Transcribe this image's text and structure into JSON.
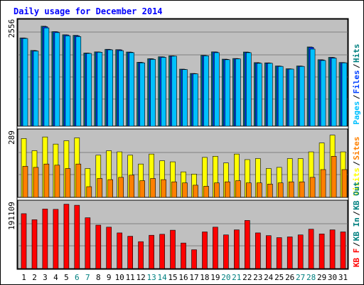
{
  "title": "Daily usage for December 2014",
  "chart_data": [
    {
      "type": "bar",
      "panel": "top",
      "max_label": "2556",
      "ylim": [
        0,
        2720
      ],
      "legend": [
        {
          "label": "Pages",
          "color": "#00c0ff"
        },
        {
          "label": "Files",
          "color": "#0040ff"
        },
        {
          "label": "Hits",
          "color": "#008080"
        }
      ],
      "categories": [
        "1",
        "2",
        "3",
        "4",
        "5",
        "6",
        "7",
        "8",
        "9",
        "10",
        "11",
        "12",
        "13",
        "14",
        "15",
        "16",
        "17",
        "18",
        "19",
        "20",
        "21",
        "22",
        "23",
        "24",
        "25",
        "26",
        "27",
        "28",
        "29",
        "30",
        "31"
      ],
      "series": [
        {
          "name": "Hits",
          "color": "#008080",
          "values": [
            2245,
            1925,
            2542,
            2405,
            2325,
            2310,
            1860,
            1890,
            1955,
            1945,
            1885,
            1625,
            1715,
            1765,
            1790,
            1450,
            1340,
            1800,
            1890,
            1705,
            1720,
            1885,
            1615,
            1610,
            1530,
            1460,
            1530,
            2015,
            1690,
            1750,
            1620
          ]
        },
        {
          "name": "Files",
          "color": "#0040ff",
          "values": [
            2240,
            1920,
            2530,
            2400,
            2320,
            2300,
            1855,
            1885,
            1950,
            1940,
            1880,
            1620,
            1710,
            1760,
            1785,
            1445,
            1335,
            1795,
            1885,
            1700,
            1715,
            1880,
            1610,
            1605,
            1525,
            1455,
            1525,
            2005,
            1685,
            1745,
            1615
          ]
        },
        {
          "name": "Pages",
          "color": "#00c0ff",
          "values": [
            2230,
            1910,
            2500,
            2380,
            2300,
            2280,
            1850,
            1880,
            1940,
            1920,
            1870,
            1610,
            1700,
            1750,
            1780,
            1440,
            1330,
            1790,
            1870,
            1690,
            1710,
            1870,
            1600,
            1600,
            1520,
            1450,
            1520,
            1960,
            1670,
            1730,
            1610
          ]
        }
      ]
    },
    {
      "type": "bar",
      "panel": "middle",
      "max_label": "289",
      "ylim": [
        0,
        308
      ],
      "legend": [
        {
          "label": "Visits",
          "color": "#ffff00"
        },
        {
          "label": "Sites",
          "color": "#ff8000"
        }
      ],
      "categories": [
        "1",
        "2",
        "3",
        "4",
        "5",
        "6",
        "7",
        "8",
        "9",
        "10",
        "11",
        "12",
        "13",
        "14",
        "15",
        "16",
        "17",
        "18",
        "19",
        "20",
        "21",
        "22",
        "23",
        "24",
        "25",
        "26",
        "27",
        "28",
        "29",
        "30",
        "31"
      ],
      "series": [
        {
          "name": "Visits",
          "color": "#ffff00",
          "values": [
            265,
            210,
            272,
            240,
            255,
            268,
            130,
            190,
            210,
            205,
            190,
            150,
            195,
            165,
            160,
            115,
            105,
            180,
            185,
            155,
            195,
            170,
            175,
            130,
            135,
            175,
            175,
            205,
            245,
            280,
            205
          ]
        },
        {
          "name": "Sites",
          "color": "#ff8000",
          "values": [
            140,
            135,
            150,
            145,
            130,
            150,
            48,
            85,
            80,
            90,
            100,
            75,
            85,
            80,
            70,
            65,
            55,
            50,
            65,
            70,
            75,
            65,
            65,
            60,
            65,
            70,
            70,
            90,
            125,
            185,
            125
          ]
        }
      ]
    },
    {
      "type": "bar",
      "panel": "bottom",
      "max_label": "191109",
      "ylim": [
        0,
        203000
      ],
      "legend": [
        {
          "label": "KB F",
          "color": "#ff0000"
        },
        {
          "label": "KB In",
          "color": "#008080"
        },
        {
          "label": "KB Out",
          "color": "#008080"
        }
      ],
      "categories": [
        "1",
        "2",
        "3",
        "4",
        "5",
        "6",
        "7",
        "8",
        "9",
        "10",
        "11",
        "12",
        "13",
        "14",
        "15",
        "16",
        "17",
        "18",
        "19",
        "20",
        "21",
        "22",
        "23",
        "24",
        "25",
        "26",
        "27",
        "28",
        "29",
        "30",
        "31"
      ],
      "series": [
        {
          "name": "KB F",
          "color": "#ff0000",
          "values": [
            163000,
            145000,
            177000,
            176000,
            191109,
            188000,
            151000,
            129000,
            123000,
            106000,
            96000,
            80000,
            99000,
            102000,
            114000,
            76000,
            56000,
            109000,
            123000,
            100000,
            115000,
            143000,
            106000,
            98000,
            92000,
            94000,
            100000,
            117000,
            103000,
            115000,
            109000
          ]
        }
      ]
    }
  ],
  "weekend_days": [
    "6",
    "7",
    "13",
    "14",
    "20",
    "21",
    "27",
    "28"
  ]
}
